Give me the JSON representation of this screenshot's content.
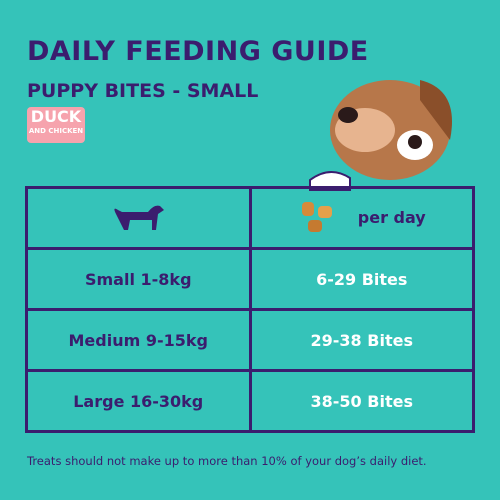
{
  "header": {
    "title": "DAILY FEEDING GUIDE",
    "subtitle": "PUPPY BITES - SMALL",
    "badge_main": "DUCK",
    "badge_sub": "AND CHICKEN"
  },
  "table": {
    "header_right": "per day",
    "rows": [
      [
        "Small 1-8kg",
        "6-29 Bites"
      ],
      [
        "Medium 9-15kg",
        "29-38 Bites"
      ],
      [
        "Large 16-30kg",
        "38-50 Bites"
      ]
    ]
  },
  "footer": "Treats should not make up to more than 10% of your dog’s daily diet."
}
